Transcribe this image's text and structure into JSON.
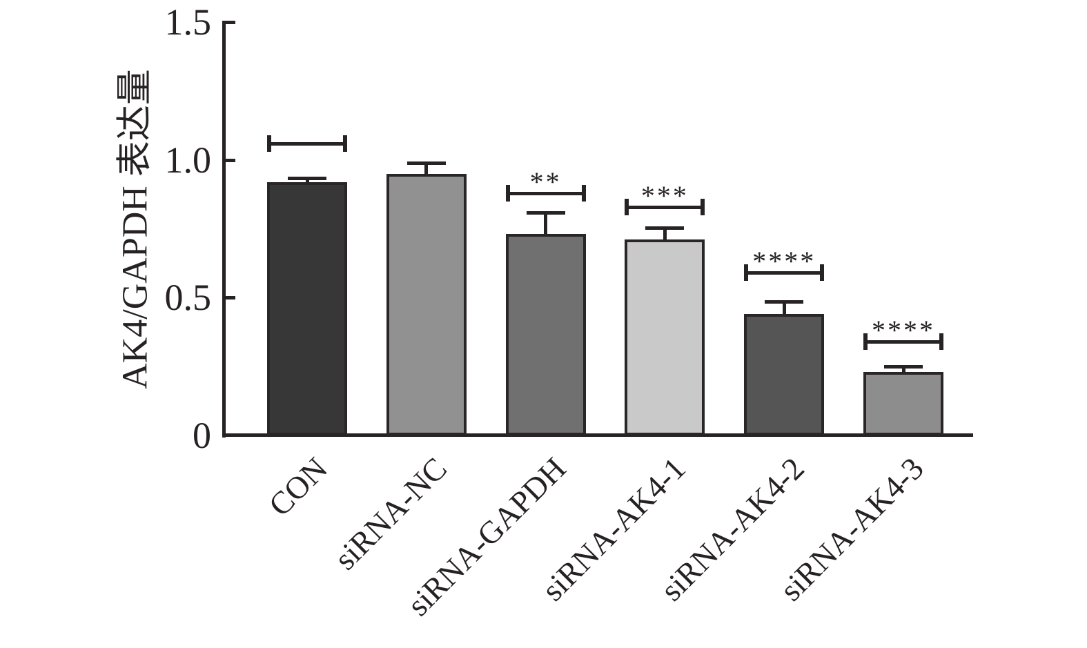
{
  "chart_data": {
    "type": "bar",
    "ylabel": "AK4/GAPDH 表达量",
    "xlabel": "",
    "ylim": [
      0,
      1.5
    ],
    "yticks": [
      0,
      0.5,
      1.0,
      1.5
    ],
    "ytick_labels": [
      "0",
      "0.5",
      "1.0",
      "1.5"
    ],
    "categories": [
      "CON",
      "siRNA-NC",
      "siRNA-GAPDH",
      "siRNA-AK4-1",
      "siRNA-AK4-2",
      "siRNA-AK4-3"
    ],
    "values": [
      0.92,
      0.95,
      0.73,
      0.71,
      0.44,
      0.23
    ],
    "errors": [
      0.015,
      0.04,
      0.08,
      0.045,
      0.045,
      0.02
    ],
    "bar_colors": [
      "#373737",
      "#919191",
      "#707070",
      "#c9c9c9",
      "#565555",
      "#8e8d8d"
    ],
    "bar_outline_color": "#2a2627",
    "axis_color": "#272324",
    "significance_brackets": [
      {
        "category": "CON",
        "label": "",
        "height": 1.06
      },
      {
        "category": "siRNA-GAPDH",
        "label": "**",
        "height": 0.88
      },
      {
        "category": "siRNA-AK4-1",
        "label": "***",
        "height": 0.83
      },
      {
        "category": "siRNA-AK4-2",
        "label": "****",
        "height": 0.59
      },
      {
        "category": "siRNA-AK4-3",
        "label": "****",
        "height": 0.34
      }
    ],
    "grid": false,
    "legend": "none"
  }
}
